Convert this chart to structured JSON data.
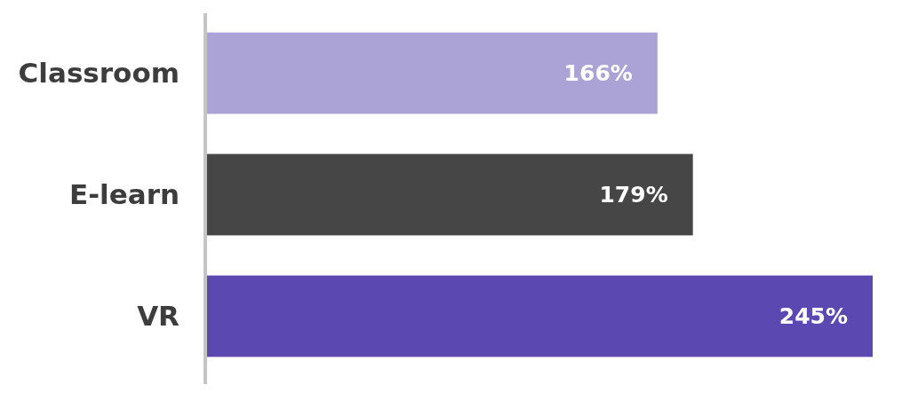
{
  "chart_data": {
    "type": "bar",
    "orientation": "horizontal",
    "relative": false,
    "categories": [
      "Classroom",
      "E-learn",
      "VR"
    ],
    "values": [
      166,
      179,
      245
    ],
    "colors": [
      "#aba3d6",
      "#464646",
      "#5b48b0"
    ],
    "value_labels": [
      "166%",
      "179%",
      "245%"
    ]
  }
}
